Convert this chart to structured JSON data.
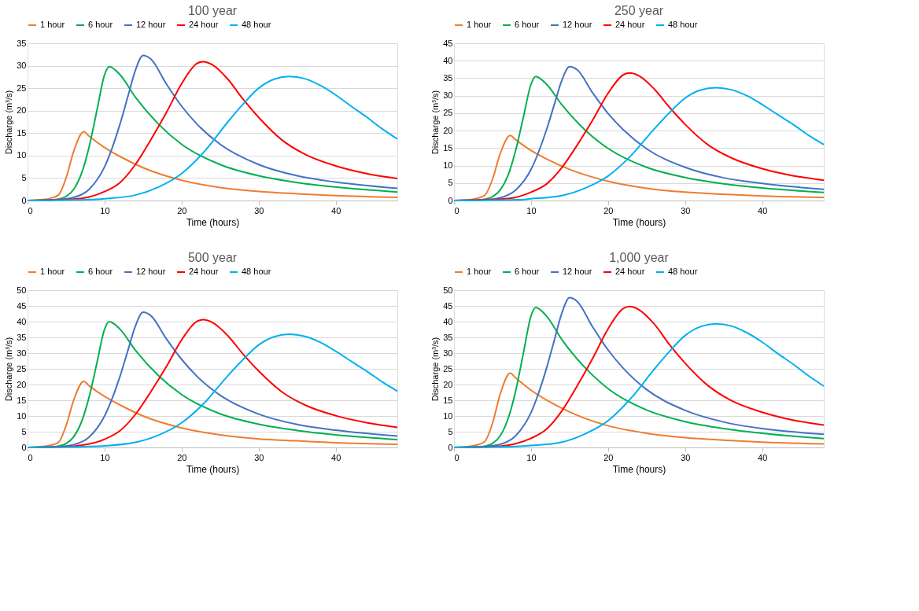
{
  "chart_data": [
    {
      "type": "line",
      "title": "100 year",
      "xlabel": "Time (hours)",
      "ylabel": "Discharge (m³/s)",
      "xlim": [
        0,
        48
      ],
      "xticks": [
        0,
        10,
        20,
        30,
        40
      ],
      "ylim": [
        0,
        35
      ],
      "yticks": [
        0,
        5,
        10,
        15,
        20,
        25,
        30,
        35
      ],
      "grid": "y",
      "legend": "top",
      "line_style": "solid",
      "series": [
        {
          "name": "1 hour",
          "color": "#ed7d31",
          "x": [
            0,
            2,
            3,
            4,
            5,
            6,
            7.3,
            8,
            10,
            12,
            15,
            20,
            25,
            30,
            35,
            40,
            48
          ],
          "values": [
            0,
            0.2,
            0.5,
            1.2,
            5,
            11,
            15.3,
            14.3,
            11.8,
            9.8,
            7.3,
            4.5,
            2.9,
            2.0,
            1.5,
            1.1,
            0.7
          ]
        },
        {
          "name": "6 hour",
          "color": "#00b050",
          "x": [
            0,
            3,
            4,
            5,
            6,
            7,
            8,
            9,
            10,
            10.6,
            12,
            14,
            17,
            20,
            25,
            30,
            35,
            40,
            48
          ],
          "values": [
            0,
            0.1,
            0.3,
            0.9,
            2.5,
            6,
            12,
            20,
            28,
            29.8,
            28,
            23,
            17,
            12.5,
            8,
            5.5,
            4,
            3,
            1.9
          ]
        },
        {
          "name": "12 hour",
          "color": "#4472c4",
          "x": [
            0,
            4,
            6,
            8,
            10,
            12,
            13,
            14,
            15,
            16,
            18,
            20,
            22,
            25,
            30,
            35,
            40,
            48
          ],
          "values": [
            0,
            0.2,
            0.7,
            2.5,
            7.5,
            17,
            23,
            29,
            32.3,
            31.5,
            26,
            21,
            17,
            12.5,
            8,
            5.5,
            4.1,
            2.7
          ]
        },
        {
          "name": "24 hour",
          "color": "#ff0000",
          "x": [
            0,
            6,
            8,
            10,
            12,
            14,
            16,
            18,
            20,
            22,
            22.8,
            24,
            26,
            28,
            30,
            33,
            36,
            40,
            44,
            48
          ],
          "values": [
            0,
            0.3,
            0.8,
            2,
            4,
            8,
            13.5,
            19.5,
            26,
            30.5,
            30.9,
            30.2,
            27,
            22.5,
            18.5,
            13.5,
            10.3,
            7.7,
            6,
            4.9
          ]
        },
        {
          "name": "48 hour",
          "color": "#00b0f0",
          "x": [
            0,
            8,
            10,
            14,
            17,
            20,
            23,
            26,
            28,
            30,
            32,
            34,
            36,
            38,
            40,
            42,
            44,
            46,
            48
          ],
          "values": [
            0,
            0.2,
            0.4,
            1.2,
            3,
            6,
            11,
            17.5,
            21.5,
            25,
            27,
            27.6,
            27.1,
            25.6,
            23.5,
            21,
            18.6,
            16,
            13.7
          ]
        }
      ]
    },
    {
      "type": "line",
      "title": "250 year",
      "xlabel": "Time (hours)",
      "ylabel": "Discharge (m³/s)",
      "xlim": [
        0,
        48
      ],
      "xticks": [
        0,
        10,
        20,
        30,
        40
      ],
      "ylim": [
        0,
        45
      ],
      "yticks": [
        0,
        5,
        10,
        15,
        20,
        25,
        30,
        35,
        40,
        45
      ],
      "grid": "y",
      "legend": "top",
      "line_style": "solid",
      "series": [
        {
          "name": "1 hour",
          "color": "#ed7d31",
          "x": [
            0,
            2,
            3,
            4,
            5,
            6,
            7.3,
            8,
            10,
            12,
            15,
            20,
            25,
            30,
            35,
            40,
            48
          ],
          "values": [
            0,
            0.2,
            0.6,
            1.5,
            6.1,
            13.4,
            18.6,
            17.4,
            14.3,
            11.9,
            8.9,
            5.5,
            3.5,
            2.4,
            1.8,
            1.3,
            0.9
          ]
        },
        {
          "name": "6 hour",
          "color": "#00b050",
          "x": [
            0,
            3,
            4,
            5,
            6,
            7,
            8,
            9,
            10,
            10.6,
            12,
            14,
            17,
            20,
            25,
            30,
            35,
            40,
            48
          ],
          "values": [
            0,
            0.1,
            0.4,
            1.1,
            3.0,
            7.1,
            14.3,
            23.8,
            33.3,
            35.5,
            33.3,
            27.4,
            20.2,
            14.9,
            9.5,
            6.6,
            4.8,
            3.6,
            2.3
          ]
        },
        {
          "name": "12 hour",
          "color": "#4472c4",
          "x": [
            0,
            4,
            6,
            8,
            10,
            12,
            13,
            14,
            15,
            16,
            18,
            20,
            22,
            25,
            30,
            35,
            40,
            48
          ],
          "values": [
            0,
            0.2,
            0.8,
            3.0,
            8.9,
            20.2,
            27.3,
            34.4,
            38.3,
            37.4,
            30.8,
            24.9,
            20.2,
            14.8,
            9.5,
            6.5,
            4.9,
            3.2
          ]
        },
        {
          "name": "24 hour",
          "color": "#ff0000",
          "x": [
            0,
            6,
            8,
            10,
            12,
            14,
            16,
            18,
            20,
            22,
            22.8,
            24,
            26,
            28,
            30,
            33,
            36,
            40,
            44,
            48
          ],
          "values": [
            0,
            0.4,
            0.9,
            2.4,
            4.7,
            9.4,
            15.9,
            23.0,
            30.7,
            36.0,
            36.5,
            35.7,
            31.9,
            26.6,
            21.8,
            15.9,
            12.2,
            9.1,
            7.1,
            5.8
          ]
        },
        {
          "name": "48 hour",
          "color": "#00b0f0",
          "x": [
            0,
            8,
            10,
            14,
            17,
            20,
            23,
            26,
            28,
            30,
            32,
            34,
            36,
            38,
            40,
            42,
            44,
            46,
            48
          ],
          "values": [
            0,
            0.2,
            0.5,
            1.4,
            3.5,
            7.0,
            12.9,
            20.5,
            25.2,
            29.3,
            31.6,
            32.3,
            31.7,
            30.0,
            27.5,
            24.6,
            21.8,
            18.7,
            16.0
          ]
        }
      ]
    },
    {
      "type": "line",
      "title": "500 year",
      "xlabel": "Time (hours)",
      "ylabel": "Discharge (m³/s)",
      "xlim": [
        0,
        48
      ],
      "xticks": [
        0,
        10,
        20,
        30,
        40
      ],
      "ylim": [
        0,
        50
      ],
      "yticks": [
        0,
        5,
        10,
        15,
        20,
        25,
        30,
        35,
        40,
        45,
        50
      ],
      "grid": "y",
      "legend": "top",
      "line_style": "solid",
      "series": [
        {
          "name": "1 hour",
          "color": "#ed7d31",
          "x": [
            0,
            2,
            3,
            4,
            5,
            6,
            7.3,
            8,
            10,
            12,
            15,
            20,
            25,
            30,
            35,
            40,
            48
          ],
          "values": [
            0,
            0.3,
            0.7,
            1.6,
            6.9,
            15.1,
            21.0,
            19.6,
            16.2,
            13.5,
            10.0,
            6.2,
            4.0,
            2.7,
            2.1,
            1.5,
            1.0
          ]
        },
        {
          "name": "6 hour",
          "color": "#00b050",
          "x": [
            0,
            3,
            4,
            5,
            6,
            7,
            8,
            9,
            10,
            10.6,
            12,
            14,
            17,
            20,
            25,
            30,
            35,
            40,
            48
          ],
          "values": [
            0,
            0.1,
            0.4,
            1.2,
            3.4,
            8.1,
            16.1,
            26.8,
            37.6,
            40.0,
            37.6,
            30.9,
            22.8,
            16.8,
            10.7,
            7.4,
            5.4,
            4.0,
            2.5
          ]
        },
        {
          "name": "12 hour",
          "color": "#4472c4",
          "x": [
            0,
            4,
            6,
            8,
            10,
            12,
            13,
            14,
            15,
            16,
            18,
            20,
            22,
            25,
            30,
            35,
            40,
            48
          ],
          "values": [
            0,
            0.3,
            0.9,
            3.3,
            10.0,
            22.6,
            30.6,
            38.6,
            43.0,
            41.9,
            34.6,
            28.0,
            22.6,
            16.6,
            10.6,
            7.3,
            5.5,
            3.6
          ]
        },
        {
          "name": "24 hour",
          "color": "#ff0000",
          "x": [
            0,
            6,
            8,
            10,
            12,
            14,
            16,
            18,
            20,
            22,
            22.8,
            24,
            26,
            28,
            30,
            33,
            36,
            40,
            44,
            48
          ],
          "values": [
            0,
            0.4,
            1.1,
            2.6,
            5.3,
            10.5,
            17.7,
            25.6,
            34.2,
            40.1,
            40.6,
            39.7,
            35.5,
            29.6,
            24.3,
            17.7,
            13.5,
            10.1,
            7.9,
            6.4
          ]
        },
        {
          "name": "48 hour",
          "color": "#00b0f0",
          "x": [
            0,
            8,
            10,
            14,
            17,
            20,
            23,
            26,
            28,
            30,
            32,
            34,
            36,
            38,
            40,
            42,
            44,
            46,
            48
          ],
          "values": [
            0,
            0.3,
            0.5,
            1.6,
            3.9,
            7.8,
            14.3,
            22.8,
            28.0,
            32.6,
            35.2,
            36.0,
            35.3,
            33.4,
            30.6,
            27.4,
            24.3,
            20.9,
            17.9
          ]
        }
      ]
    },
    {
      "type": "line",
      "title": "1,000 year",
      "xlabel": "Time (hours)",
      "ylabel": "Discharge (m³/s)",
      "xlim": [
        0,
        48
      ],
      "xticks": [
        0,
        10,
        20,
        30,
        40
      ],
      "ylim": [
        0,
        50
      ],
      "yticks": [
        0,
        5,
        10,
        15,
        20,
        25,
        30,
        35,
        40,
        45,
        50
      ],
      "grid": "y",
      "legend": "top",
      "line_style": "solid",
      "series": [
        {
          "name": "1 hour",
          "color": "#ed7d31",
          "x": [
            0,
            2,
            3,
            4,
            5,
            6,
            7.3,
            8,
            10,
            12,
            15,
            20,
            25,
            30,
            35,
            40,
            48
          ],
          "values": [
            0,
            0.3,
            0.8,
            1.9,
            7.7,
            17.0,
            23.6,
            22.1,
            18.2,
            15.1,
            11.3,
            6.9,
            4.5,
            3.1,
            2.3,
            1.7,
            1.1
          ]
        },
        {
          "name": "6 hour",
          "color": "#00b050",
          "x": [
            0,
            3,
            4,
            5,
            6,
            7,
            8,
            9,
            10,
            10.6,
            12,
            14,
            17,
            20,
            25,
            30,
            35,
            40,
            48
          ],
          "values": [
            0,
            0.1,
            0.4,
            1.3,
            3.7,
            9.0,
            17.9,
            29.9,
            41.8,
            44.5,
            41.8,
            34.3,
            25.4,
            18.7,
            11.9,
            8.2,
            6.0,
            4.5,
            2.8
          ]
        },
        {
          "name": "12 hour",
          "color": "#4472c4",
          "x": [
            0,
            4,
            6,
            8,
            10,
            12,
            13,
            14,
            15,
            16,
            18,
            20,
            22,
            25,
            30,
            35,
            40,
            48
          ],
          "values": [
            0,
            0.3,
            1.0,
            3.7,
            11.1,
            25.1,
            33.9,
            42.7,
            47.6,
            46.4,
            38.3,
            31.0,
            25.1,
            18.4,
            11.8,
            8.1,
            6.0,
            4.2
          ]
        },
        {
          "name": "24 hour",
          "color": "#ff0000",
          "x": [
            0,
            6,
            8,
            10,
            12,
            14,
            16,
            18,
            20,
            22,
            22.8,
            24,
            26,
            28,
            30,
            33,
            36,
            40,
            44,
            48
          ],
          "values": [
            0,
            0.4,
            1.2,
            2.9,
            5.8,
            11.6,
            19.6,
            28.3,
            37.7,
            44.2,
            44.8,
            43.8,
            39.2,
            32.6,
            26.8,
            19.6,
            14.9,
            11.2,
            8.7,
            7.1
          ]
        },
        {
          "name": "48 hour",
          "color": "#00b0f0",
          "x": [
            0,
            8,
            10,
            14,
            17,
            20,
            23,
            26,
            28,
            30,
            32,
            34,
            36,
            38,
            40,
            42,
            44,
            46,
            48
          ],
          "values": [
            0,
            0.3,
            0.6,
            1.7,
            4.3,
            8.5,
            15.7,
            24.9,
            30.6,
            35.6,
            38.4,
            39.3,
            38.6,
            36.5,
            33.5,
            29.9,
            26.5,
            22.8,
            19.5
          ]
        }
      ]
    }
  ]
}
